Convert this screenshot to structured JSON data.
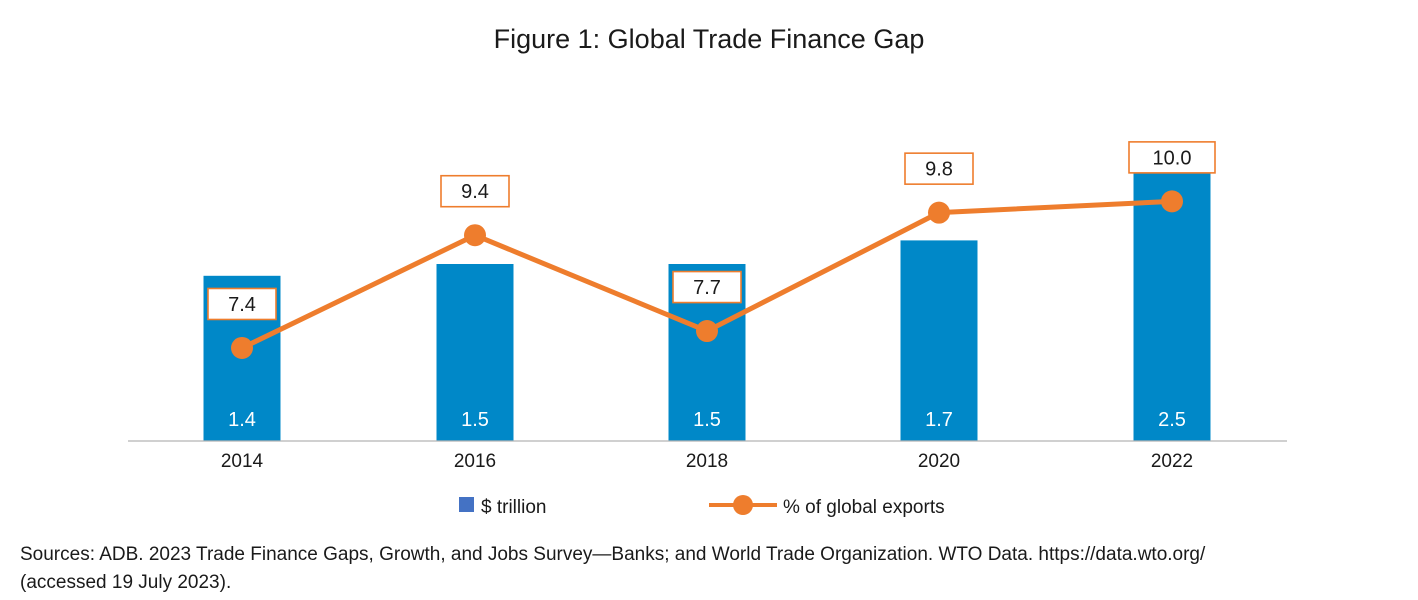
{
  "chart_data": {
    "type": "bar+line",
    "title": "Figure 1: Global Trade Finance Gap",
    "categories": [
      "2014",
      "2016",
      "2018",
      "2020",
      "2022"
    ],
    "series": [
      {
        "name": "$ trillion",
        "type": "bar",
        "values": [
          1.4,
          1.5,
          1.5,
          1.7,
          2.5
        ],
        "labels": [
          "1.4",
          "1.5",
          "1.5",
          "1.7",
          "2.5"
        ],
        "color": "#0088c8",
        "axis_range": [
          0,
          2.5
        ]
      },
      {
        "name": "% of global exports",
        "type": "line",
        "values": [
          7.4,
          9.4,
          7.7,
          9.8,
          10.0
        ],
        "labels": [
          "7.4",
          "9.4",
          "7.7",
          "9.8",
          "10.0"
        ],
        "color": "#ee7d2d",
        "axis_range": [
          5.75,
          11.0
        ]
      }
    ],
    "legend": {
      "placement": "bottom-center",
      "bar_swatch_color": "#4472c4"
    },
    "grid": false
  },
  "source": {
    "line1": "Sources: ADB. 2023 Trade Finance Gaps, Growth, and Jobs Survey—Banks; and World Trade Organization. WTO Data. https://data.wto.org/",
    "line2": "(accessed 19 July 2023)."
  }
}
